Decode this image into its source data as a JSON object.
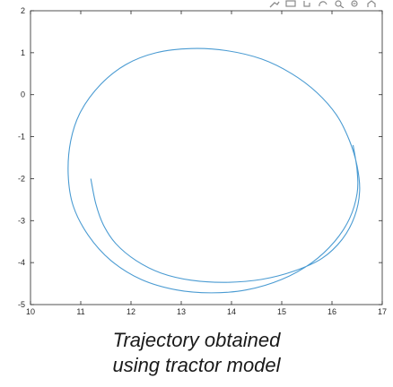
{
  "caption": {
    "line1": "Trajectory obtained",
    "line2": "using tractor model"
  },
  "toolbar": {
    "icons": [
      "brush-icon",
      "data-tip-icon",
      "pan-icon",
      "rotate-icon",
      "zoom-in-icon",
      "zoom-out-icon",
      "home-icon"
    ]
  },
  "chart_data": {
    "type": "line",
    "title": "",
    "xlabel": "",
    "ylabel": "",
    "xlim": [
      10,
      17
    ],
    "ylim": [
      -5,
      2
    ],
    "xticks": [
      10,
      11,
      12,
      13,
      14,
      15,
      16,
      17
    ],
    "yticks": [
      -5,
      -4,
      -3,
      -2,
      -1,
      0,
      1,
      2
    ],
    "grid": false,
    "line_color": "#4a9bd2",
    "series": [
      {
        "name": "",
        "x": [
          11.2,
          11.3,
          11.45,
          11.7,
          12.1,
          12.6,
          13.2,
          13.9,
          14.6,
          15.25,
          15.8,
          16.2,
          16.45,
          16.55,
          16.5,
          16.35,
          16.1,
          15.7,
          15.2,
          14.6,
          13.9,
          13.2,
          12.5,
          11.9,
          11.4,
          11.0,
          10.8,
          10.75,
          10.85,
          11.15,
          11.6,
          12.2,
          12.9,
          13.6,
          14.3,
          15.0,
          15.6,
          16.05,
          16.35,
          16.5,
          16.5,
          16.42
        ],
        "y": [
          -2.0,
          -2.6,
          -3.1,
          -3.55,
          -3.95,
          -4.25,
          -4.42,
          -4.47,
          -4.4,
          -4.2,
          -3.9,
          -3.45,
          -2.9,
          -2.3,
          -1.7,
          -1.1,
          -0.5,
          0.05,
          0.5,
          0.85,
          1.05,
          1.1,
          1.0,
          0.72,
          0.25,
          -0.4,
          -1.1,
          -1.9,
          -2.65,
          -3.35,
          -3.95,
          -4.4,
          -4.65,
          -4.72,
          -4.65,
          -4.4,
          -4.0,
          -3.5,
          -2.95,
          -2.35,
          -1.8,
          -1.2
        ]
      }
    ]
  }
}
